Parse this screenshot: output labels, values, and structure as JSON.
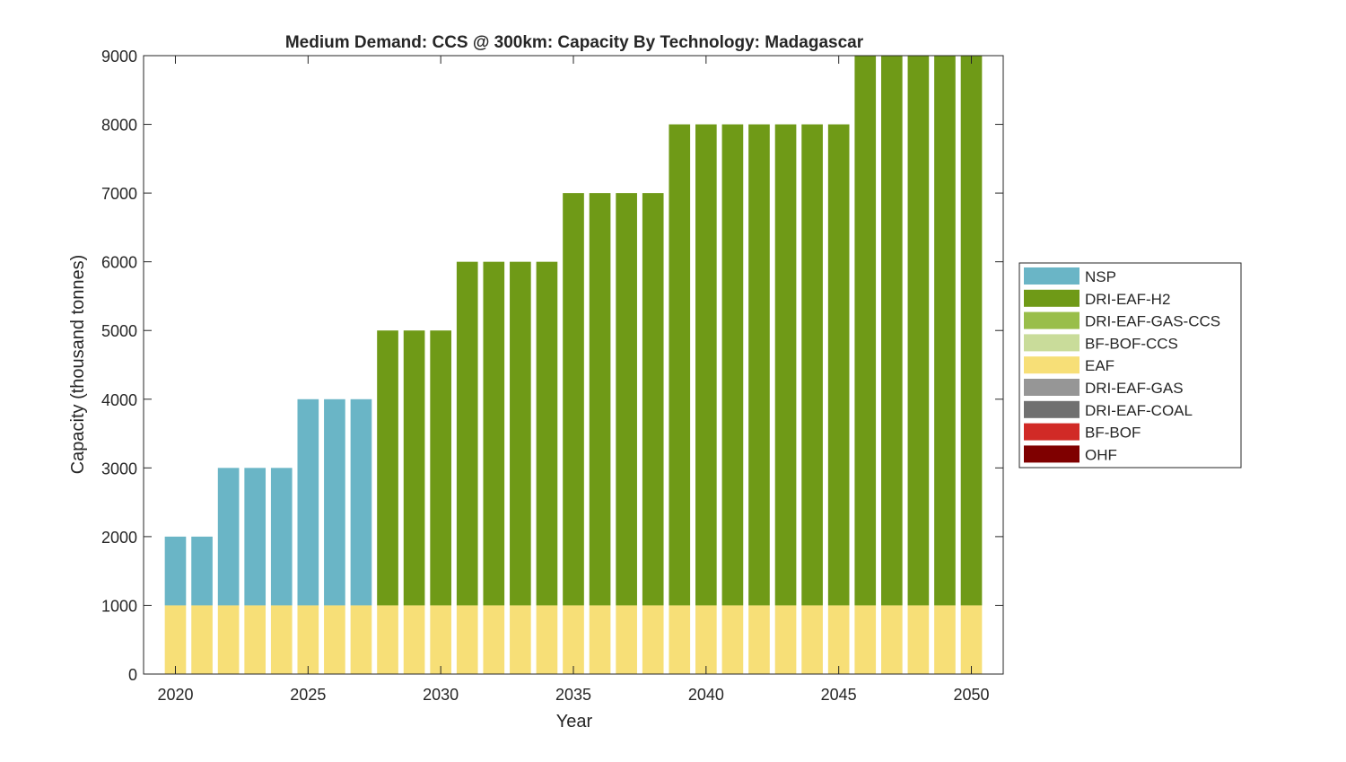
{
  "chart_data": {
    "type": "bar",
    "stacked": true,
    "title": "Medium Demand: CCS @ 300km: Capacity By Technology: Madagascar",
    "xlabel": "Year",
    "ylabel": "Capacity (thousand tonnes)",
    "xlim": [
      2018.8,
      2051.2
    ],
    "ylim": [
      0,
      9000
    ],
    "xticks": [
      2020,
      2025,
      2030,
      2035,
      2040,
      2045,
      2050
    ],
    "yticks": [
      0,
      1000,
      2000,
      3000,
      4000,
      5000,
      6000,
      7000,
      8000,
      9000
    ],
    "grid": false,
    "legend_placement": "outside-right",
    "categories": [
      2020,
      2021,
      2022,
      2023,
      2024,
      2025,
      2026,
      2027,
      2028,
      2029,
      2030,
      2031,
      2032,
      2033,
      2034,
      2035,
      2036,
      2037,
      2038,
      2039,
      2040,
      2041,
      2042,
      2043,
      2044,
      2045,
      2046,
      2047,
      2048,
      2049,
      2050
    ],
    "series": [
      {
        "name": "NSP",
        "color": "#6AB5C6",
        "values": [
          1000,
          1000,
          2000,
          2000,
          2000,
          3000,
          3000,
          3000,
          0,
          0,
          0,
          0,
          0,
          0,
          0,
          0,
          0,
          0,
          0,
          0,
          0,
          0,
          0,
          0,
          0,
          0,
          0,
          0,
          0,
          0,
          0
        ]
      },
      {
        "name": "DRI-EAF-H2",
        "color": "#6F9A17",
        "values": [
          0,
          0,
          0,
          0,
          0,
          0,
          0,
          0,
          4000,
          4000,
          4000,
          5000,
          5000,
          5000,
          5000,
          6000,
          6000,
          6000,
          6000,
          7000,
          7000,
          7000,
          7000,
          7000,
          7000,
          7000,
          8000,
          8000,
          8000,
          8000,
          8000
        ]
      },
      {
        "name": "DRI-EAF-GAS-CCS",
        "color": "#99BE4A",
        "values": [
          0,
          0,
          0,
          0,
          0,
          0,
          0,
          0,
          0,
          0,
          0,
          0,
          0,
          0,
          0,
          0,
          0,
          0,
          0,
          0,
          0,
          0,
          0,
          0,
          0,
          0,
          0,
          0,
          0,
          0,
          0
        ]
      },
      {
        "name": "BF-BOF-CCS",
        "color": "#C9DC9A",
        "values": [
          0,
          0,
          0,
          0,
          0,
          0,
          0,
          0,
          0,
          0,
          0,
          0,
          0,
          0,
          0,
          0,
          0,
          0,
          0,
          0,
          0,
          0,
          0,
          0,
          0,
          0,
          0,
          0,
          0,
          0,
          0
        ]
      },
      {
        "name": "EAF",
        "color": "#F7DF77",
        "values": [
          1000,
          1000,
          1000,
          1000,
          1000,
          1000,
          1000,
          1000,
          1000,
          1000,
          1000,
          1000,
          1000,
          1000,
          1000,
          1000,
          1000,
          1000,
          1000,
          1000,
          1000,
          1000,
          1000,
          1000,
          1000,
          1000,
          1000,
          1000,
          1000,
          1000,
          1000
        ]
      },
      {
        "name": "DRI-EAF-GAS",
        "color": "#969696",
        "values": [
          0,
          0,
          0,
          0,
          0,
          0,
          0,
          0,
          0,
          0,
          0,
          0,
          0,
          0,
          0,
          0,
          0,
          0,
          0,
          0,
          0,
          0,
          0,
          0,
          0,
          0,
          0,
          0,
          0,
          0,
          0
        ]
      },
      {
        "name": "DRI-EAF-COAL",
        "color": "#707070",
        "values": [
          0,
          0,
          0,
          0,
          0,
          0,
          0,
          0,
          0,
          0,
          0,
          0,
          0,
          0,
          0,
          0,
          0,
          0,
          0,
          0,
          0,
          0,
          0,
          0,
          0,
          0,
          0,
          0,
          0,
          0,
          0
        ]
      },
      {
        "name": "BF-BOF",
        "color": "#D12A26",
        "values": [
          0,
          0,
          0,
          0,
          0,
          0,
          0,
          0,
          0,
          0,
          0,
          0,
          0,
          0,
          0,
          0,
          0,
          0,
          0,
          0,
          0,
          0,
          0,
          0,
          0,
          0,
          0,
          0,
          0,
          0,
          0
        ]
      },
      {
        "name": "OHF",
        "color": "#7F0000",
        "values": [
          0,
          0,
          0,
          0,
          0,
          0,
          0,
          0,
          0,
          0,
          0,
          0,
          0,
          0,
          0,
          0,
          0,
          0,
          0,
          0,
          0,
          0,
          0,
          0,
          0,
          0,
          0,
          0,
          0,
          0,
          0
        ]
      }
    ],
    "stack_order_bottom_to_top": [
      "EAF",
      "NSP",
      "DRI-EAF-H2"
    ]
  }
}
